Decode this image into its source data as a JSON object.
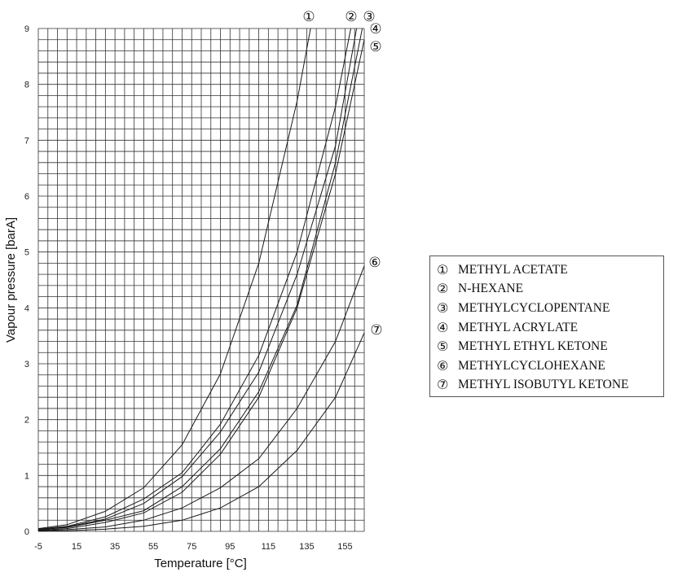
{
  "chart_data": {
    "type": "line",
    "xlabel": "Temperature [°C]",
    "ylabel": "Vapour pressure [barA]",
    "xlim": [
      -5,
      165
    ],
    "ylim": [
      0,
      9
    ],
    "x_ticks": [
      "-5",
      "15",
      "35",
      "55",
      "75",
      "95",
      "115",
      "135",
      "155"
    ],
    "y_ticks": [
      "0",
      "1",
      "2",
      "3",
      "4",
      "5",
      "6",
      "7",
      "8",
      "9"
    ],
    "grid": true,
    "legend_position": "right",
    "series": [
      {
        "marker": "①",
        "name": "METHYL ACETATE",
        "points": [
          [
            -5,
            0.05
          ],
          [
            10,
            0.12
          ],
          [
            30,
            0.36
          ],
          [
            50,
            0.78
          ],
          [
            70,
            1.55
          ],
          [
            90,
            2.82
          ],
          [
            110,
            4.8
          ],
          [
            130,
            7.7
          ],
          [
            137,
            9.0
          ]
        ]
      },
      {
        "marker": "②",
        "name": "N-HEXANE",
        "points": [
          [
            -5,
            0.04
          ],
          [
            10,
            0.09
          ],
          [
            30,
            0.26
          ],
          [
            50,
            0.58
          ],
          [
            70,
            1.05
          ],
          [
            90,
            1.92
          ],
          [
            110,
            3.15
          ],
          [
            130,
            5.0
          ],
          [
            150,
            7.6
          ],
          [
            158,
            9.0
          ]
        ]
      },
      {
        "marker": "③",
        "name": "METHYLCYCLOPENTANE",
        "points": [
          [
            -5,
            0.03
          ],
          [
            10,
            0.08
          ],
          [
            30,
            0.22
          ],
          [
            50,
            0.5
          ],
          [
            70,
            0.98
          ],
          [
            90,
            1.78
          ],
          [
            110,
            2.85
          ],
          [
            130,
            4.6
          ],
          [
            150,
            6.9
          ],
          [
            161,
            9.0
          ]
        ]
      },
      {
        "marker": "④",
        "name": "METHYL ACRYLATE",
        "points": [
          [
            -5,
            0.03
          ],
          [
            10,
            0.07
          ],
          [
            30,
            0.2
          ],
          [
            50,
            0.37
          ],
          [
            70,
            0.8
          ],
          [
            90,
            1.48
          ],
          [
            110,
            2.5
          ],
          [
            130,
            4.05
          ],
          [
            150,
            6.6
          ],
          [
            164,
            9.0
          ]
        ]
      },
      {
        "marker": "⑤",
        "name": "METHYL ETHYL KETONE",
        "points": [
          [
            -5,
            0.02
          ],
          [
            10,
            0.05
          ],
          [
            30,
            0.16
          ],
          [
            50,
            0.33
          ],
          [
            70,
            0.7
          ],
          [
            90,
            1.38
          ],
          [
            110,
            2.4
          ],
          [
            130,
            4.0
          ],
          [
            150,
            6.4
          ],
          [
            165,
            8.8
          ]
        ]
      },
      {
        "marker": "⑥",
        "name": "METHYLCYCLOHEXANE",
        "points": [
          [
            -5,
            0.01
          ],
          [
            10,
            0.03
          ],
          [
            30,
            0.08
          ],
          [
            50,
            0.2
          ],
          [
            70,
            0.42
          ],
          [
            90,
            0.78
          ],
          [
            110,
            1.3
          ],
          [
            130,
            2.2
          ],
          [
            150,
            3.4
          ],
          [
            165,
            4.75
          ]
        ]
      },
      {
        "marker": "⑦",
        "name": "METHYL ISOBUTYL KETONE",
        "points": [
          [
            -5,
            0.005
          ],
          [
            10,
            0.01
          ],
          [
            30,
            0.04
          ],
          [
            50,
            0.09
          ],
          [
            70,
            0.2
          ],
          [
            90,
            0.42
          ],
          [
            110,
            0.8
          ],
          [
            130,
            1.45
          ],
          [
            150,
            2.4
          ],
          [
            165,
            3.55
          ]
        ]
      }
    ]
  }
}
